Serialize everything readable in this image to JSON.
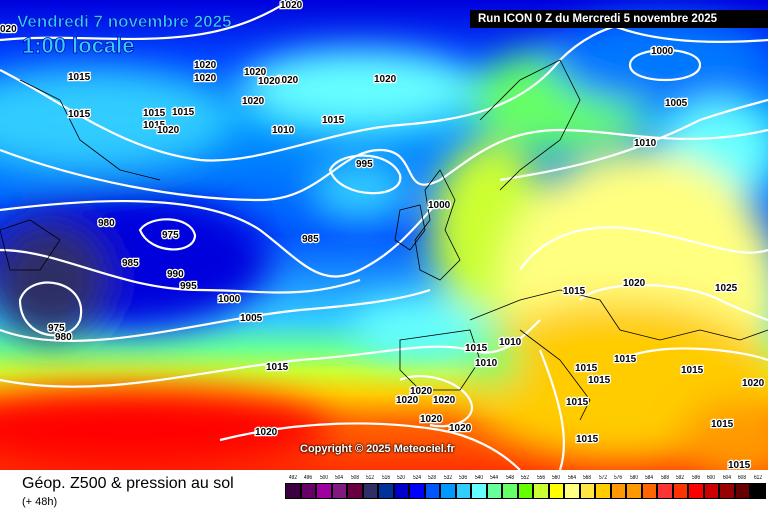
{
  "header": {
    "date_line": "Vendredi 7 novembre 2025",
    "time_line": "1:00 locale",
    "run_label": "Run ICON 0 Z du Mercredi 5 novembre 2025"
  },
  "map": {
    "copyright": "Copyright © 2025 Meteociel.fr",
    "contour_color": "#ffffff",
    "isobar_labels": [
      "1020",
      "020",
      "1015",
      "1015",
      "1020",
      "1020",
      "1015",
      "1015",
      "1020",
      "1015",
      "1020",
      "1020",
      "1020",
      "1020",
      "1020",
      "1010",
      "1015",
      "995",
      "1000",
      "985",
      "975",
      "980",
      "985",
      "990",
      "995",
      "1000",
      "1005",
      "975",
      "980",
      "1015",
      "1000",
      "1005",
      "1010",
      "1020",
      "1015",
      "1025",
      "1015",
      "1010",
      "1010",
      "1015",
      "1015",
      "1015",
      "1015",
      "1015",
      "1015",
      "1015",
      "1015",
      "1020",
      "1020",
      "1020",
      "1020",
      "1020",
      "1020",
      "1020"
    ]
  },
  "footer": {
    "title": "Géop. Z500 & pression au sol",
    "subtitle": "(+ 48h)",
    "scale": [
      {
        "v": "492",
        "c": "#3c0040"
      },
      {
        "v": "496",
        "c": "#660066"
      },
      {
        "v": "500",
        "c": "#a000a0"
      },
      {
        "v": "504",
        "c": "#801a80"
      },
      {
        "v": "508",
        "c": "#660040"
      },
      {
        "v": "512",
        "c": "#2f2f66"
      },
      {
        "v": "516",
        "c": "#003399"
      },
      {
        "v": "520",
        "c": "#0000cc"
      },
      {
        "v": "524",
        "c": "#0000ff"
      },
      {
        "v": "528",
        "c": "#0055ff"
      },
      {
        "v": "532",
        "c": "#0099ff"
      },
      {
        "v": "536",
        "c": "#33ccff"
      },
      {
        "v": "540",
        "c": "#66ffff"
      },
      {
        "v": "544",
        "c": "#66ff99"
      },
      {
        "v": "548",
        "c": "#66ff66"
      },
      {
        "v": "552",
        "c": "#66ff00"
      },
      {
        "v": "556",
        "c": "#ccff33"
      },
      {
        "v": "560",
        "c": "#ffff00"
      },
      {
        "v": "564",
        "c": "#ffff80"
      },
      {
        "v": "568",
        "c": "#ffe640"
      },
      {
        "v": "572",
        "c": "#ffcc00"
      },
      {
        "v": "576",
        "c": "#ff9900"
      },
      {
        "v": "580",
        "c": "#ff9900"
      },
      {
        "v": "584",
        "c": "#ff6600"
      },
      {
        "v": "588",
        "c": "#ff3333"
      },
      {
        "v": "592",
        "c": "#ff3300"
      },
      {
        "v": "596",
        "c": "#ff0000"
      },
      {
        "v": "600",
        "c": "#cc0000"
      },
      {
        "v": "604",
        "c": "#990000"
      },
      {
        "v": "608",
        "c": "#660000"
      },
      {
        "v": "612",
        "c": "#000000"
      }
    ]
  }
}
